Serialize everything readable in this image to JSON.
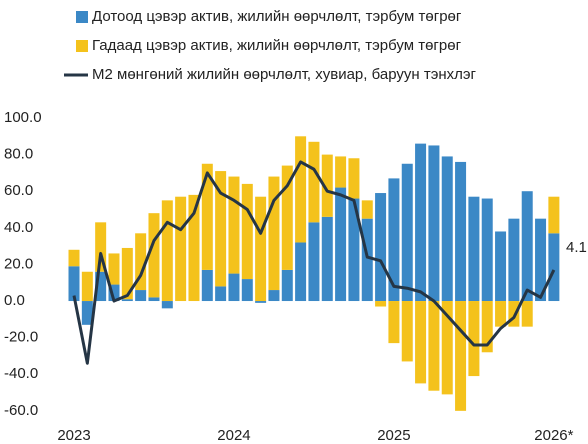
{
  "chart_data": {
    "type": "bar",
    "categories": [
      "2023",
      null,
      null,
      null,
      null,
      null,
      null,
      null,
      null,
      null,
      null,
      null,
      "2024",
      null,
      null,
      null,
      null,
      null,
      null,
      null,
      null,
      null,
      null,
      null,
      "2025",
      null,
      null,
      null,
      null,
      null,
      null,
      null,
      null,
      null,
      null,
      null,
      "2026*"
    ],
    "series": [
      {
        "name": "Дотоод цэвэр актив,  жилийн өөрчлөлт, тэрбум төгрөг",
        "color": "#3b88c6",
        "values": [
          19,
          -13,
          16,
          9,
          1,
          6,
          2,
          -4,
          0,
          0,
          17,
          8,
          15,
          12,
          -1,
          6,
          17,
          32,
          43,
          46,
          62,
          56,
          45,
          59,
          67,
          75,
          86,
          85,
          79,
          76,
          57,
          56,
          38,
          45,
          60,
          45,
          37
        ]
      },
      {
        "name": "Гадаад цэвэр актив, жилийн өөрчлөлт, тэрбум төгрөг",
        "color": "#f4c21c",
        "values": [
          9,
          16,
          27,
          17,
          28,
          31,
          46,
          55,
          57,
          58,
          58,
          63,
          53,
          52,
          57,
          62,
          57,
          58,
          44,
          34,
          17,
          22,
          10,
          -3,
          -23,
          -33,
          -45,
          -49,
          -51,
          -60,
          -41,
          -28,
          -14,
          -14,
          -14,
          0,
          20
        ]
      },
      {
        "name": "M2 мөнгөний жилийн өөрчлөлт, хувиар, баруун тэнхлэг",
        "color": "#253545",
        "type": "line",
        "values": [
          3,
          -34,
          26,
          0,
          3,
          14,
          33,
          43,
          39,
          48,
          70,
          59,
          55,
          50,
          37,
          55,
          63,
          76,
          72,
          60,
          58,
          55,
          24,
          22,
          8,
          7,
          5,
          0,
          -8,
          -16,
          -24,
          -24,
          -15,
          -9,
          6,
          2,
          17
        ]
      }
    ],
    "annotations": [
      "4.1"
    ],
    "ylim": [
      -65,
      100
    ],
    "yticks": [
      {
        "value": 100,
        "label": "100.0"
      },
      {
        "value": 80,
        "label": "80.0"
      },
      {
        "value": 60,
        "label": "60.0"
      },
      {
        "value": 40,
        "label": "40.0"
      },
      {
        "value": 20,
        "label": "20.0"
      },
      {
        "value": 0,
        "label": "0.0"
      },
      {
        "value": -20,
        "label": "-20.0"
      },
      {
        "value": -40,
        "label": "-40.0"
      },
      {
        "value": -60,
        "label": "-60.0"
      }
    ],
    "grid": false
  }
}
